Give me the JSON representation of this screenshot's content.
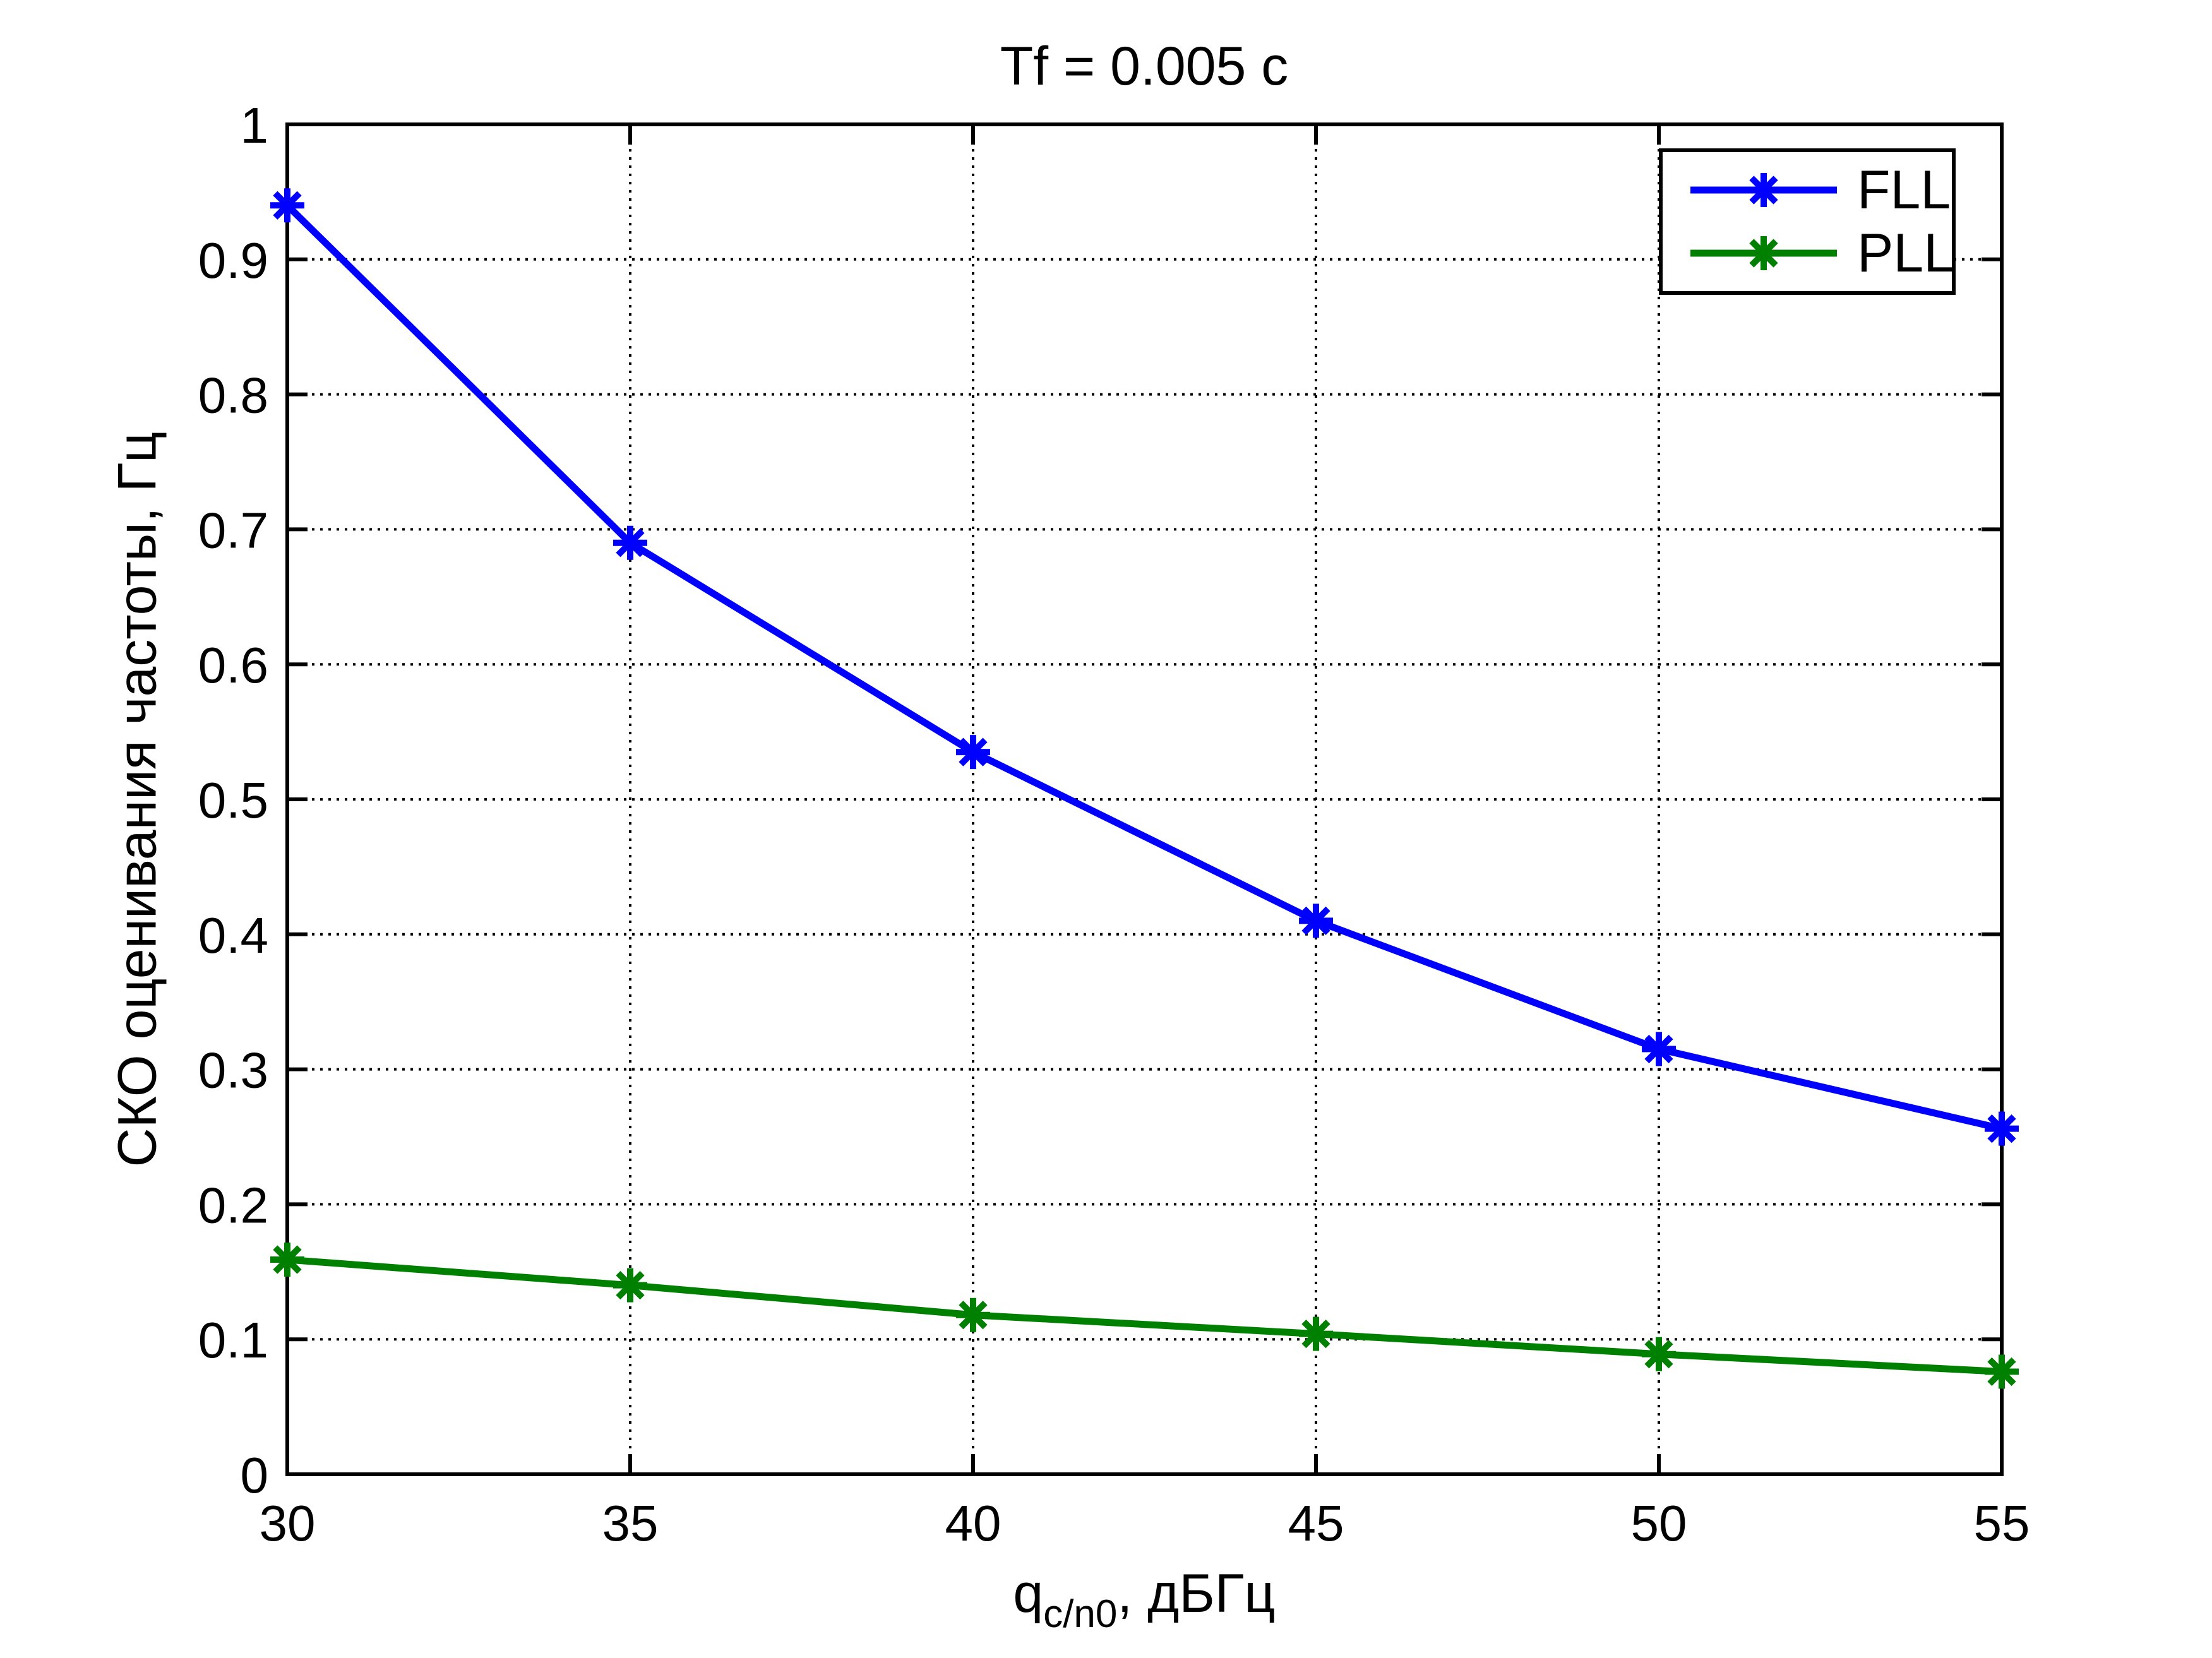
{
  "chart_data": {
    "type": "line",
    "title": "Tf = 0.005 с",
    "ylabel": "СКО оценивания частоты, Гц",
    "xlabel_base": "q",
    "xlabel_subscript": "c/n0",
    "xlabel_suffix": ", дБГц",
    "x": [
      30,
      35,
      40,
      45,
      50,
      55
    ],
    "series": [
      {
        "name": "FLL",
        "color": "#0000ff",
        "marker": "asterisk",
        "values": [
          0.94,
          0.69,
          0.535,
          0.41,
          0.315,
          0.256
        ]
      },
      {
        "name": "PLL",
        "color": "#008000",
        "marker": "asterisk",
        "values": [
          0.159,
          0.14,
          0.118,
          0.104,
          0.089,
          0.076
        ]
      }
    ],
    "xlim": [
      30,
      55
    ],
    "ylim": [
      0,
      1
    ],
    "xticks": [
      30,
      35,
      40,
      45,
      50,
      55
    ],
    "yticks": [
      0,
      0.1,
      0.2,
      0.3,
      0.4,
      0.5,
      0.6,
      0.7,
      0.8,
      0.9,
      1
    ],
    "xtick_labels": [
      "30",
      "35",
      "40",
      "45",
      "50",
      "55"
    ],
    "ytick_labels": [
      "0",
      "0.1",
      "0.2",
      "0.3",
      "0.4",
      "0.5",
      "0.6",
      "0.7",
      "0.8",
      "0.9",
      "1"
    ],
    "grid": "dotted",
    "legend_position": "top-right",
    "axis_color": "#000000",
    "background_color": "#ffffff"
  }
}
